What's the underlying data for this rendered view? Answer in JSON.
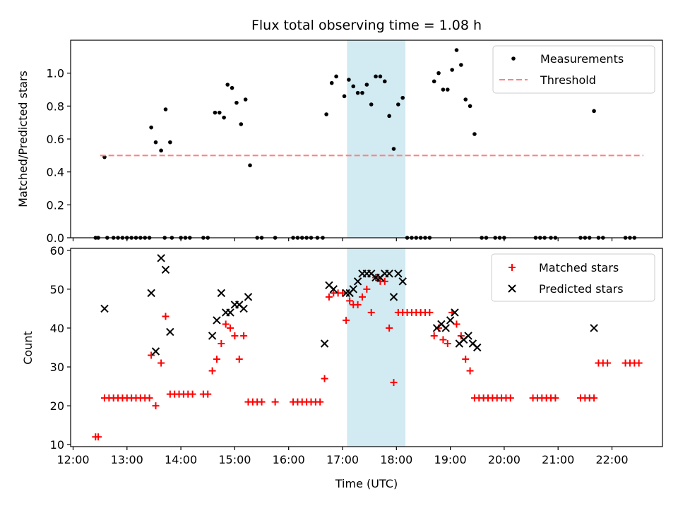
{
  "chart_data": [
    {
      "type": "scatter",
      "title": "Flux total observing time = 1.08 h",
      "xlabel": "",
      "ylabel": "Matched/Predicted stars",
      "ylim": [
        0,
        1.2
      ],
      "yticks": [
        "0.0",
        "0.2",
        "0.4",
        "0.6",
        "0.8",
        "1.0"
      ],
      "shaded_interval": [
        "17:05",
        "18:10"
      ],
      "shade_color": "#add8e6",
      "legend_position": "top-right",
      "series": [
        {
          "name": "Measurements",
          "marker": "dot",
          "color": "#000000",
          "points": [
            [
              "12:25",
              0
            ],
            [
              "12:28",
              0
            ],
            [
              "12:35",
              0.49
            ],
            [
              "12:38",
              0
            ],
            [
              "12:45",
              0
            ],
            [
              "12:50",
              0
            ],
            [
              "12:55",
              0
            ],
            [
              "13:00",
              0
            ],
            [
              "13:05",
              0
            ],
            [
              "13:10",
              0
            ],
            [
              "13:15",
              0
            ],
            [
              "13:20",
              0
            ],
            [
              "13:25",
              0
            ],
            [
              "13:27",
              0.67
            ],
            [
              "13:32",
              0.58
            ],
            [
              "13:38",
              0.53
            ],
            [
              "13:43",
              0.78
            ],
            [
              "13:48",
              0.58
            ],
            [
              "13:42",
              0
            ],
            [
              "13:50",
              0
            ],
            [
              "14:00",
              0
            ],
            [
              "14:05",
              0
            ],
            [
              "14:10",
              0
            ],
            [
              "14:25",
              0
            ],
            [
              "14:30",
              0
            ],
            [
              "14:38",
              0.76
            ],
            [
              "14:43",
              0.76
            ],
            [
              "14:48",
              0.73
            ],
            [
              "14:52",
              0.93
            ],
            [
              "14:57",
              0.91
            ],
            [
              "15:02",
              0.82
            ],
            [
              "15:07",
              0.69
            ],
            [
              "15:12",
              0.84
            ],
            [
              "15:17",
              0.44
            ],
            [
              "15:25",
              0
            ],
            [
              "15:30",
              0
            ],
            [
              "15:45",
              0
            ],
            [
              "16:05",
              0
            ],
            [
              "16:10",
              0
            ],
            [
              "16:15",
              0
            ],
            [
              "16:20",
              0
            ],
            [
              "16:25",
              0
            ],
            [
              "16:32",
              0
            ],
            [
              "16:38",
              0
            ],
            [
              "16:42",
              0.75
            ],
            [
              "16:48",
              0.94
            ],
            [
              "16:53",
              0.98
            ],
            [
              "17:02",
              0.86
            ],
            [
              "17:07",
              0.96
            ],
            [
              "17:12",
              0.92
            ],
            [
              "17:17",
              0.88
            ],
            [
              "17:22",
              0.88
            ],
            [
              "17:27",
              0.93
            ],
            [
              "17:32",
              0.81
            ],
            [
              "17:37",
              0.98
            ],
            [
              "17:42",
              0.98
            ],
            [
              "17:47",
              0.95
            ],
            [
              "17:52",
              0.74
            ],
            [
              "17:57",
              0.54
            ],
            [
              "18:02",
              0.81
            ],
            [
              "18:07",
              0.85
            ],
            [
              "18:12",
              0
            ],
            [
              "18:17",
              0
            ],
            [
              "18:22",
              0
            ],
            [
              "18:27",
              0
            ],
            [
              "18:32",
              0
            ],
            [
              "18:37",
              0
            ],
            [
              "18:42",
              0.95
            ],
            [
              "18:47",
              1.0
            ],
            [
              "18:52",
              0.9
            ],
            [
              "18:57",
              0.9
            ],
            [
              "19:02",
              1.02
            ],
            [
              "19:07",
              1.14
            ],
            [
              "19:12",
              1.05
            ],
            [
              "19:17",
              0.84
            ],
            [
              "19:22",
              0.8
            ],
            [
              "19:27",
              0.63
            ],
            [
              "19:35",
              0
            ],
            [
              "19:40",
              0
            ],
            [
              "19:50",
              0
            ],
            [
              "19:55",
              0
            ],
            [
              "20:00",
              0
            ],
            [
              "20:35",
              0
            ],
            [
              "20:40",
              0
            ],
            [
              "20:45",
              0
            ],
            [
              "20:52",
              0
            ],
            [
              "20:57",
              0
            ],
            [
              "21:25",
              0
            ],
            [
              "21:30",
              0
            ],
            [
              "21:35",
              0
            ],
            [
              "21:40",
              0.77
            ],
            [
              "21:45",
              0
            ],
            [
              "21:50",
              0
            ],
            [
              "22:15",
              0
            ],
            [
              "22:20",
              0
            ],
            [
              "22:25",
              0
            ]
          ]
        },
        {
          "name": "Threshold",
          "marker": "dashed-line",
          "color": "#ff7f7f",
          "points": [
            [
              "12:30",
              0.5
            ],
            [
              "22:35",
              0.5
            ]
          ]
        }
      ]
    },
    {
      "type": "scatter",
      "title": "",
      "xlabel": "Time (UTC)",
      "ylabel": "Count",
      "ylim": [
        9.5,
        60
      ],
      "yticks": [
        "10",
        "20",
        "30",
        "40",
        "50",
        "60"
      ],
      "xticks": [
        "12:00",
        "13:00",
        "14:00",
        "15:00",
        "16:00",
        "17:00",
        "18:00",
        "19:00",
        "20:00",
        "21:00",
        "22:00"
      ],
      "shaded_interval": [
        "17:05",
        "18:10"
      ],
      "shade_color": "#add8e6",
      "legend_position": "top-right",
      "series": [
        {
          "name": "Matched stars",
          "marker": "plus",
          "color": "#ff0000",
          "points": [
            [
              "12:25",
              12
            ],
            [
              "12:28",
              12
            ],
            [
              "12:35",
              22
            ],
            [
              "12:40",
              22
            ],
            [
              "12:45",
              22
            ],
            [
              "12:50",
              22
            ],
            [
              "12:55",
              22
            ],
            [
              "13:00",
              22
            ],
            [
              "13:05",
              22
            ],
            [
              "13:10",
              22
            ],
            [
              "13:15",
              22
            ],
            [
              "13:20",
              22
            ],
            [
              "13:25",
              22
            ],
            [
              "13:27",
              33
            ],
            [
              "13:32",
              20
            ],
            [
              "13:38",
              31
            ],
            [
              "13:43",
              43
            ],
            [
              "13:48",
              23
            ],
            [
              "13:53",
              23
            ],
            [
              "13:58",
              23
            ],
            [
              "14:03",
              23
            ],
            [
              "14:08",
              23
            ],
            [
              "14:13",
              23
            ],
            [
              "14:25",
              23
            ],
            [
              "14:30",
              23
            ],
            [
              "14:35",
              29
            ],
            [
              "14:40",
              32
            ],
            [
              "14:45",
              36
            ],
            [
              "14:50",
              41
            ],
            [
              "14:55",
              40
            ],
            [
              "15:00",
              38
            ],
            [
              "15:05",
              32
            ],
            [
              "15:10",
              38
            ],
            [
              "15:15",
              21
            ],
            [
              "15:20",
              21
            ],
            [
              "15:25",
              21
            ],
            [
              "15:30",
              21
            ],
            [
              "15:45",
              21
            ],
            [
              "16:05",
              21
            ],
            [
              "16:10",
              21
            ],
            [
              "16:15",
              21
            ],
            [
              "16:20",
              21
            ],
            [
              "16:25",
              21
            ],
            [
              "16:30",
              21
            ],
            [
              "16:35",
              21
            ],
            [
              "16:40",
              27
            ],
            [
              "16:45",
              48
            ],
            [
              "16:50",
              49
            ],
            [
              "16:55",
              49
            ],
            [
              "17:00",
              49
            ],
            [
              "17:04",
              42
            ],
            [
              "17:08",
              47
            ],
            [
              "17:12",
              46
            ],
            [
              "17:17",
              46
            ],
            [
              "17:22",
              48
            ],
            [
              "17:27",
              50
            ],
            [
              "17:32",
              44
            ],
            [
              "17:37",
              53
            ],
            [
              "17:42",
              52
            ],
            [
              "17:47",
              52
            ],
            [
              "17:52",
              40
            ],
            [
              "17:57",
              26
            ],
            [
              "18:02",
              44
            ],
            [
              "18:07",
              44
            ],
            [
              "18:12",
              44
            ],
            [
              "18:17",
              44
            ],
            [
              "18:22",
              44
            ],
            [
              "18:27",
              44
            ],
            [
              "18:32",
              44
            ],
            [
              "18:37",
              44
            ],
            [
              "18:42",
              38
            ],
            [
              "18:47",
              40
            ],
            [
              "18:52",
              37
            ],
            [
              "18:57",
              36
            ],
            [
              "19:02",
              44
            ],
            [
              "19:07",
              41
            ],
            [
              "19:12",
              38
            ],
            [
              "19:17",
              32
            ],
            [
              "19:22",
              29
            ],
            [
              "19:27",
              22
            ],
            [
              "19:32",
              22
            ],
            [
              "19:37",
              22
            ],
            [
              "19:42",
              22
            ],
            [
              "19:47",
              22
            ],
            [
              "19:52",
              22
            ],
            [
              "19:57",
              22
            ],
            [
              "20:02",
              22
            ],
            [
              "20:07",
              22
            ],
            [
              "20:32",
              22
            ],
            [
              "20:37",
              22
            ],
            [
              "20:42",
              22
            ],
            [
              "20:47",
              22
            ],
            [
              "20:52",
              22
            ],
            [
              "20:57",
              22
            ],
            [
              "21:25",
              22
            ],
            [
              "21:30",
              22
            ],
            [
              "21:35",
              22
            ],
            [
              "21:40",
              22
            ],
            [
              "21:45",
              31
            ],
            [
              "21:50",
              31
            ],
            [
              "21:55",
              31
            ],
            [
              "22:15",
              31
            ],
            [
              "22:20",
              31
            ],
            [
              "22:25",
              31
            ],
            [
              "22:30",
              31
            ]
          ]
        },
        {
          "name": "Predicted stars",
          "marker": "x",
          "color": "#000000",
          "points": [
            [
              "12:35",
              45
            ],
            [
              "13:27",
              49
            ],
            [
              "13:32",
              34
            ],
            [
              "13:38",
              58
            ],
            [
              "13:43",
              55
            ],
            [
              "13:48",
              39
            ],
            [
              "14:35",
              38
            ],
            [
              "14:40",
              42
            ],
            [
              "14:45",
              49
            ],
            [
              "14:50",
              44
            ],
            [
              "14:55",
              44
            ],
            [
              "15:00",
              46
            ],
            [
              "15:05",
              46
            ],
            [
              "15:10",
              45
            ],
            [
              "15:15",
              48
            ],
            [
              "16:40",
              36
            ],
            [
              "16:45",
              51
            ],
            [
              "16:50",
              50
            ],
            [
              "17:04",
              49
            ],
            [
              "17:08",
              49
            ],
            [
              "17:12",
              50
            ],
            [
              "17:17",
              52
            ],
            [
              "17:22",
              54
            ],
            [
              "17:27",
              54
            ],
            [
              "17:32",
              54
            ],
            [
              "17:37",
              53
            ],
            [
              "17:42",
              53
            ],
            [
              "17:47",
              54
            ],
            [
              "17:52",
              54
            ],
            [
              "17:57",
              48
            ],
            [
              "18:02",
              54
            ],
            [
              "18:07",
              52
            ],
            [
              "18:45",
              40
            ],
            [
              "18:50",
              41
            ],
            [
              "18:55",
              40
            ],
            [
              "19:00",
              42
            ],
            [
              "19:05",
              44
            ],
            [
              "19:10",
              36
            ],
            [
              "19:15",
              37
            ],
            [
              "19:20",
              38
            ],
            [
              "19:25",
              36
            ],
            [
              "19:30",
              35
            ],
            [
              "21:40",
              40
            ]
          ]
        }
      ]
    }
  ]
}
